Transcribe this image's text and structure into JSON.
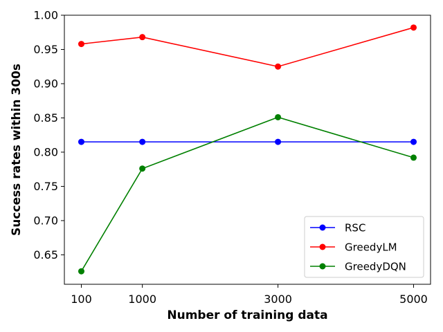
{
  "chart_data": {
    "type": "line",
    "xlabel": "Number of training data",
    "ylabel": "Success rates within 300s",
    "x": [
      100,
      1000,
      3000,
      5000
    ],
    "x_tick_labels": [
      "100",
      "1000",
      "3000",
      "5000"
    ],
    "y_ticks": [
      0.65,
      0.7,
      0.75,
      0.8,
      0.85,
      0.9,
      0.95,
      1.0
    ],
    "y_tick_labels": [
      "0.65",
      "0.70",
      "0.75",
      "0.80",
      "0.85",
      "0.90",
      "0.95",
      "1.00"
    ],
    "ylim": [
      0.607,
      1.0
    ],
    "xlim": [
      -150,
      5250
    ],
    "grid": false,
    "legend_position": "lower-right",
    "series": [
      {
        "name": "RSC",
        "color": "#0000ff",
        "values": [
          0.815,
          0.815,
          0.815,
          0.815
        ]
      },
      {
        "name": "GreedyLM",
        "color": "#ff0000",
        "values": [
          0.958,
          0.968,
          0.925,
          0.982
        ]
      },
      {
        "name": "GreedyDQN",
        "color": "#008000",
        "values": [
          0.626,
          0.776,
          0.851,
          0.792
        ]
      }
    ]
  }
}
